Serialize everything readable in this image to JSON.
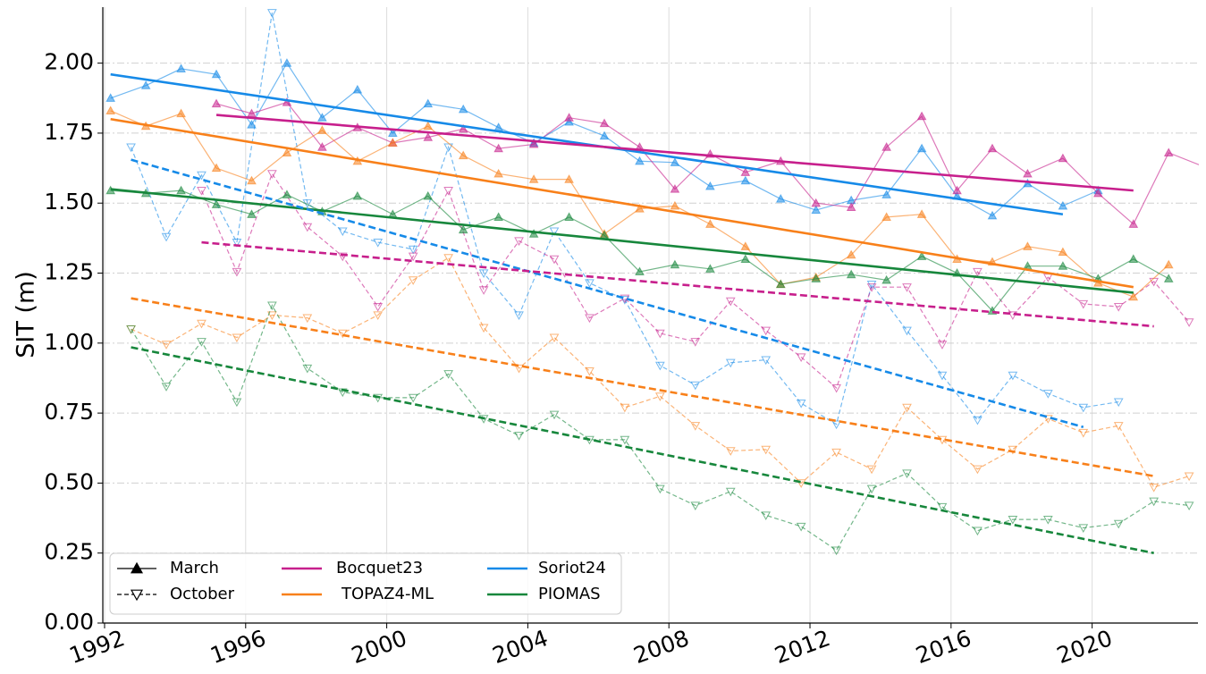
{
  "chart_data": {
    "type": "line",
    "y_label": "SIT (m)",
    "xlim": [
      1991.95,
      2023.0
    ],
    "ylim": [
      0,
      2.2
    ],
    "xticks": [
      1992,
      1996,
      2000,
      2004,
      2008,
      2012,
      2016,
      2020
    ],
    "yticks": [
      {
        "value": 0,
        "label": "0.00"
      },
      {
        "value": 0.25,
        "label": "0.25"
      },
      {
        "value": 0.5,
        "label": "0.50"
      },
      {
        "value": 0.75,
        "label": "0.75"
      },
      {
        "value": 1.0,
        "label": "1.00"
      },
      {
        "value": 1.25,
        "label": "1.25"
      },
      {
        "value": 1.5,
        "label": "1.50"
      },
      {
        "value": 1.75,
        "label": "1.75"
      },
      {
        "value": 2.0,
        "label": "2.00"
      }
    ],
    "grid": true,
    "seasons": [
      {
        "name": "March",
        "linestyle": "solid",
        "marker": "^"
      },
      {
        "name": "October",
        "linestyle": "dashed",
        "marker": "v"
      }
    ],
    "models": [
      {
        "name": "Bocquet23",
        "color": "#c71f8c"
      },
      {
        "name": "TOPAZ4-ML",
        "color": "#f8801a"
      },
      {
        "name": "Soriot24",
        "color": "#168ae8"
      },
      {
        "name": "PIOMAS",
        "color": "#17873c"
      }
    ],
    "series": [
      {
        "model": 2,
        "season": 0,
        "x": [
          1992.17,
          1993.17,
          1994.17,
          1995.17,
          1996.17,
          1997.17,
          1998.17,
          1999.17,
          2000.17,
          2001.17,
          2002.17,
          2003.17,
          2004.17,
          2005.17,
          2006.17,
          2007.17,
          2008.17,
          2009.17,
          2010.17,
          2011.17,
          2012.17,
          2013.17,
          2014.17,
          2015.17,
          2016.17,
          2017.17,
          2018.17,
          2019.17,
          2020.17
        ],
        "values": [
          1.875,
          1.92,
          1.98,
          1.96,
          1.78,
          2.0,
          1.805,
          1.905,
          1.75,
          1.855,
          1.835,
          1.77,
          1.715,
          1.79,
          1.74,
          1.65,
          1.645,
          1.56,
          1.58,
          1.515,
          1.475,
          1.51,
          1.53,
          1.695,
          1.525,
          1.455,
          1.57,
          1.49,
          1.545
        ]
      },
      {
        "model": 2,
        "season": 1,
        "x": [
          1992.75,
          1993.75,
          1994.75,
          1995.75,
          1996.75,
          1997.75,
          1998.75,
          1999.75,
          2000.75,
          2001.75,
          2002.75,
          2003.75,
          2004.75,
          2005.75,
          2006.75,
          2007.75,
          2008.75,
          2009.75,
          2010.75,
          2011.75,
          2012.75,
          2013.75,
          2014.75,
          2015.75,
          2016.75,
          2017.75,
          2018.75,
          2019.75,
          2020.75
        ],
        "values": [
          1.7,
          1.38,
          1.6,
          1.36,
          2.18,
          1.5,
          1.4,
          1.36,
          1.335,
          1.7,
          1.25,
          1.1,
          1.4,
          1.215,
          1.155,
          0.92,
          0.85,
          0.93,
          0.94,
          0.785,
          0.71,
          1.21,
          1.045,
          0.885,
          0.725,
          0.885,
          0.82,
          0.77,
          0.79
        ]
      },
      {
        "model": 0,
        "season": 0,
        "x": [
          1995.17,
          1996.17,
          1997.17,
          1998.17,
          1999.17,
          2000.17,
          2001.17,
          2002.17,
          2003.17,
          2004.17,
          2005.17,
          2006.17,
          2007.17,
          2008.17,
          2009.17,
          2010.17,
          2011.17,
          2012.17,
          2013.17,
          2014.17,
          2015.17,
          2016.17,
          2017.17,
          2018.17,
          2019.17,
          2020.17,
          2021.17,
          2022.17,
          2023.17
        ],
        "values": [
          1.855,
          1.82,
          1.86,
          1.7,
          1.77,
          1.715,
          1.735,
          1.765,
          1.695,
          1.71,
          1.805,
          1.785,
          1.7,
          1.55,
          1.675,
          1.61,
          1.65,
          1.5,
          1.485,
          1.7,
          1.81,
          1.545,
          1.695,
          1.605,
          1.66,
          1.535,
          1.425,
          1.68,
          1.63
        ]
      },
      {
        "model": 0,
        "season": 1,
        "x": [
          1994.75,
          1995.75,
          1996.75,
          1997.75,
          1998.75,
          1999.75,
          2000.75,
          2001.75,
          2002.75,
          2003.75,
          2004.75,
          2005.75,
          2006.75,
          2007.75,
          2008.75,
          2009.75,
          2010.75,
          2011.75,
          2012.75,
          2013.75,
          2014.75,
          2015.75,
          2016.75,
          2017.75,
          2018.75,
          2019.75,
          2020.75,
          2021.75,
          2022.75
        ],
        "values": [
          1.545,
          1.255,
          1.605,
          1.415,
          1.31,
          1.13,
          1.31,
          1.545,
          1.19,
          1.365,
          1.3,
          1.09,
          1.16,
          1.035,
          1.005,
          1.15,
          1.045,
          0.95,
          0.84,
          1.2,
          1.2,
          0.995,
          1.255,
          1.1,
          1.235,
          1.14,
          1.13,
          1.22,
          1.075
        ]
      },
      {
        "model": 1,
        "season": 0,
        "x": [
          1992.17,
          1993.17,
          1994.17,
          1995.17,
          1996.17,
          1997.17,
          1998.17,
          1999.17,
          2000.17,
          2001.17,
          2002.17,
          2003.17,
          2004.17,
          2005.17,
          2006.17,
          2007.17,
          2008.17,
          2009.17,
          2010.17,
          2011.17,
          2012.17,
          2013.17,
          2014.17,
          2015.17,
          2016.17,
          2017.17,
          2018.17,
          2019.17,
          2020.17,
          2021.17,
          2022.17
        ],
        "values": [
          1.83,
          1.775,
          1.82,
          1.625,
          1.58,
          1.68,
          1.76,
          1.65,
          1.715,
          1.775,
          1.67,
          1.605,
          1.585,
          1.585,
          1.39,
          1.48,
          1.49,
          1.425,
          1.345,
          1.21,
          1.235,
          1.315,
          1.45,
          1.46,
          1.3,
          1.29,
          1.345,
          1.325,
          1.215,
          1.165,
          1.28
        ]
      },
      {
        "model": 1,
        "season": 1,
        "x": [
          1992.75,
          1993.75,
          1994.75,
          1995.75,
          1996.75,
          1997.75,
          1998.75,
          1999.75,
          2000.75,
          2001.75,
          2002.75,
          2003.75,
          2004.75,
          2005.75,
          2006.75,
          2007.75,
          2008.75,
          2009.75,
          2010.75,
          2011.75,
          2012.75,
          2013.75,
          2014.75,
          2015.75,
          2016.75,
          2017.75,
          2018.75,
          2019.75,
          2020.75,
          2021.75,
          2022.75
        ],
        "values": [
          1.05,
          0.995,
          1.07,
          1.02,
          1.1,
          1.09,
          1.035,
          1.1,
          1.225,
          1.305,
          1.055,
          0.91,
          1.02,
          0.9,
          0.77,
          0.81,
          0.705,
          0.615,
          0.62,
          0.5,
          0.61,
          0.55,
          0.77,
          0.655,
          0.55,
          0.62,
          0.73,
          0.68,
          0.705,
          0.485,
          0.525
        ]
      },
      {
        "model": 3,
        "season": 0,
        "x": [
          1992.17,
          1993.17,
          1994.17,
          1995.17,
          1996.17,
          1997.17,
          1998.17,
          1999.17,
          2000.17,
          2001.17,
          2002.17,
          2003.17,
          2004.17,
          2005.17,
          2006.17,
          2007.17,
          2008.17,
          2009.17,
          2010.17,
          2011.17,
          2012.17,
          2013.17,
          2014.17,
          2015.17,
          2016.17,
          2017.17,
          2018.17,
          2019.17,
          2020.17,
          2021.17,
          2022.17
        ],
        "values": [
          1.545,
          1.535,
          1.545,
          1.495,
          1.46,
          1.53,
          1.47,
          1.525,
          1.46,
          1.525,
          1.405,
          1.45,
          1.39,
          1.45,
          1.385,
          1.255,
          1.28,
          1.265,
          1.3,
          1.21,
          1.23,
          1.245,
          1.225,
          1.31,
          1.25,
          1.115,
          1.275,
          1.275,
          1.23,
          1.3,
          1.23
        ]
      },
      {
        "model": 3,
        "season": 1,
        "x": [
          1992.75,
          1993.75,
          1994.75,
          1995.75,
          1996.75,
          1997.75,
          1998.75,
          1999.75,
          2000.75,
          2001.75,
          2002.75,
          2003.75,
          2004.75,
          2005.75,
          2006.75,
          2007.75,
          2008.75,
          2009.75,
          2010.75,
          2011.75,
          2012.75,
          2013.75,
          2014.75,
          2015.75,
          2016.75,
          2017.75,
          2018.75,
          2019.75,
          2020.75,
          2021.75,
          2022.75
        ],
        "values": [
          1.05,
          0.845,
          1.005,
          0.79,
          1.135,
          0.91,
          0.825,
          0.805,
          0.805,
          0.89,
          0.73,
          0.67,
          0.745,
          0.655,
          0.655,
          0.48,
          0.42,
          0.47,
          0.385,
          0.345,
          0.26,
          0.48,
          0.535,
          0.415,
          0.33,
          0.37,
          0.37,
          0.34,
          0.355,
          0.435,
          0.42
        ]
      }
    ],
    "trends": [
      {
        "model": 2,
        "season": 0,
        "x": [
          1992.17,
          2019.17
        ],
        "values": [
          1.96,
          1.46
        ]
      },
      {
        "model": 0,
        "season": 0,
        "x": [
          1995.17,
          2021.17
        ],
        "values": [
          1.815,
          1.545
        ]
      },
      {
        "model": 1,
        "season": 0,
        "x": [
          1992.17,
          2021.17
        ],
        "values": [
          1.8,
          1.2
        ]
      },
      {
        "model": 3,
        "season": 0,
        "x": [
          1992.17,
          2021.17
        ],
        "values": [
          1.55,
          1.18
        ]
      },
      {
        "model": 2,
        "season": 1,
        "x": [
          1992.75,
          2019.75
        ],
        "values": [
          1.655,
          0.7
        ]
      },
      {
        "model": 0,
        "season": 1,
        "x": [
          1994.75,
          2021.75
        ],
        "values": [
          1.36,
          1.06
        ]
      },
      {
        "model": 1,
        "season": 1,
        "x": [
          1992.75,
          2021.75
        ],
        "values": [
          1.16,
          0.525
        ]
      },
      {
        "model": 3,
        "season": 1,
        "x": [
          1992.75,
          2021.75
        ],
        "values": [
          0.985,
          0.25
        ]
      }
    ]
  }
}
